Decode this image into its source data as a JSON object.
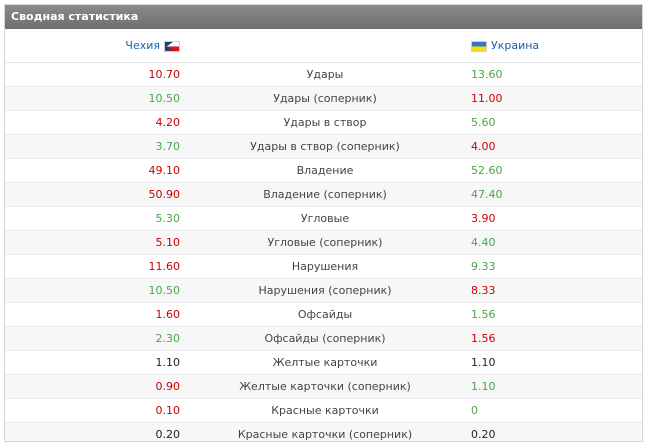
{
  "header": {
    "title": "Сводная статистика"
  },
  "teams": {
    "home": {
      "name": "Чехия",
      "flag_icon": "czech-flag-icon"
    },
    "away": {
      "name": "Украина",
      "flag_icon": "ukraine-flag-icon"
    }
  },
  "colors": {
    "better": "#4aa64a",
    "worse": "#cc0000",
    "equal": "#222222"
  },
  "stats": [
    {
      "label": "Удары",
      "home": "10.70",
      "away": "13.60",
      "home_color": "red",
      "away_color": "green"
    },
    {
      "label": "Удары (соперник)",
      "home": "10.50",
      "away": "11.00",
      "home_color": "green",
      "away_color": "red"
    },
    {
      "label": "Удары в створ",
      "home": "4.20",
      "away": "5.60",
      "home_color": "red",
      "away_color": "green"
    },
    {
      "label": "Удары в створ (соперник)",
      "home": "3.70",
      "away": "4.00",
      "home_color": "green",
      "away_color": "red"
    },
    {
      "label": "Владение",
      "home": "49.10",
      "away": "52.60",
      "home_color": "red",
      "away_color": "green"
    },
    {
      "label": "Владение (соперник)",
      "home": "50.90",
      "away": "47.40",
      "home_color": "red",
      "away_color": "green"
    },
    {
      "label": "Угловые",
      "home": "5.30",
      "away": "3.90",
      "home_color": "green",
      "away_color": "red"
    },
    {
      "label": "Угловые (соперник)",
      "home": "5.10",
      "away": "4.40",
      "home_color": "red",
      "away_color": "green"
    },
    {
      "label": "Нарушения",
      "home": "11.60",
      "away": "9.33",
      "home_color": "red",
      "away_color": "green"
    },
    {
      "label": "Нарушения (соперник)",
      "home": "10.50",
      "away": "8.33",
      "home_color": "green",
      "away_color": "red"
    },
    {
      "label": "Офсайды",
      "home": "1.60",
      "away": "1.56",
      "home_color": "red",
      "away_color": "green"
    },
    {
      "label": "Офсайды (соперник)",
      "home": "2.30",
      "away": "1.56",
      "home_color": "green",
      "away_color": "red"
    },
    {
      "label": "Желтые карточки",
      "home": "1.10",
      "away": "1.10",
      "home_color": "black",
      "away_color": "black"
    },
    {
      "label": "Желтые карточки (соперник)",
      "home": "0.90",
      "away": "1.10",
      "home_color": "red",
      "away_color": "green"
    },
    {
      "label": "Красные карточки",
      "home": "0.10",
      "away": "0",
      "home_color": "red",
      "away_color": "green"
    },
    {
      "label": "Красные карточки (соперник)",
      "home": "0.20",
      "away": "0.20",
      "home_color": "black",
      "away_color": "black"
    }
  ]
}
